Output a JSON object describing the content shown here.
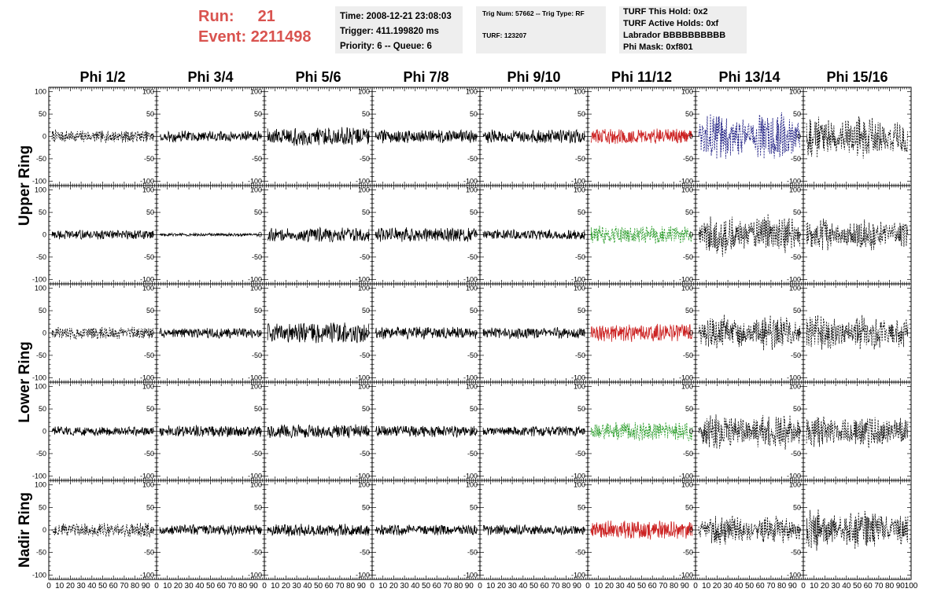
{
  "header": {
    "run_label": "Run:",
    "run_value": "21",
    "event_label": "Event:",
    "event_value": "2211498",
    "time": "Time: 2008-12-21 23:08:03",
    "trigger": "Trigger: 411.199820 ms",
    "priority": "Priority: 6 -- Queue: 6",
    "trig_num": "Trig Num: 57662 -- Trig Type: RF",
    "turf": "TURF: 123207",
    "turf_hold": "TURF This Hold: 0x2",
    "turf_active": "TURF Active Holds: 0xf",
    "labrador": "Labrador BBBBBBBBBB",
    "phi_mask": "Phi Mask: 0xf801"
  },
  "chart_data": {
    "type": "line",
    "columns": [
      "Phi 1/2",
      "Phi 3/4",
      "Phi 5/6",
      "Phi 7/8",
      "Phi 9/10",
      "Phi 11/12",
      "Phi 13/14",
      "Phi 15/16"
    ],
    "row_groups": [
      {
        "label": "Upper Ring",
        "rows": 2
      },
      {
        "label": "Lower Ring",
        "rows": 2
      },
      {
        "label": "Nadir Ring",
        "rows": 1
      }
    ],
    "ylim": [
      -110,
      110
    ],
    "yticks": [
      -100,
      -50,
      0,
      50,
      100
    ],
    "xlim": [
      0,
      100
    ],
    "xticks": [
      0,
      10,
      20,
      30,
      40,
      50,
      60,
      70,
      80,
      90,
      100
    ],
    "colors": {
      "solid": "#000000",
      "dashed": "#000000",
      "red": "#cc2222",
      "green": "#229922",
      "blue": "#1a1a80"
    },
    "panels": [
      [
        {
          "style": "dashed",
          "amp": 12
        },
        {
          "style": "solid",
          "amp": 11
        },
        {
          "style": "solid",
          "amp": 18
        },
        {
          "style": "solid",
          "amp": 13
        },
        {
          "style": "solid",
          "amp": 13
        },
        {
          "style": "red",
          "amp": 15
        },
        {
          "style": "blue",
          "amp": 50
        },
        {
          "style": "dashed",
          "amp": 42
        }
      ],
      [
        {
          "style": "solid",
          "amp": 9
        },
        {
          "style": "solid",
          "amp": 3
        },
        {
          "style": "solid",
          "amp": 14
        },
        {
          "style": "solid",
          "amp": 14
        },
        {
          "style": "solid",
          "amp": 10
        },
        {
          "style": "green",
          "amp": 18
        },
        {
          "style": "dashed",
          "amp": 42
        },
        {
          "style": "dashed",
          "amp": 32
        }
      ],
      [
        {
          "style": "dashed",
          "amp": 12
        },
        {
          "style": "solid",
          "amp": 10
        },
        {
          "style": "solid",
          "amp": 20
        },
        {
          "style": "solid",
          "amp": 12
        },
        {
          "style": "solid",
          "amp": 11
        },
        {
          "style": "red",
          "amp": 18
        },
        {
          "style": "dashed",
          "amp": 35
        },
        {
          "style": "dashed",
          "amp": 35
        }
      ],
      [
        {
          "style": "solid",
          "amp": 9
        },
        {
          "style": "solid",
          "amp": 11
        },
        {
          "style": "solid",
          "amp": 13
        },
        {
          "style": "solid",
          "amp": 11
        },
        {
          "style": "solid",
          "amp": 10
        },
        {
          "style": "green",
          "amp": 18
        },
        {
          "style": "dashed",
          "amp": 40
        },
        {
          "style": "dashed",
          "amp": 32
        }
      ],
      [
        {
          "style": "dashed",
          "amp": 14
        },
        {
          "style": "solid",
          "amp": 10
        },
        {
          "style": "solid",
          "amp": 12
        },
        {
          "style": "solid",
          "amp": 10
        },
        {
          "style": "solid",
          "amp": 10
        },
        {
          "style": "red",
          "amp": 18
        },
        {
          "style": "dashed",
          "amp": 30
        },
        {
          "style": "dashed",
          "amp": 40
        }
      ]
    ]
  }
}
